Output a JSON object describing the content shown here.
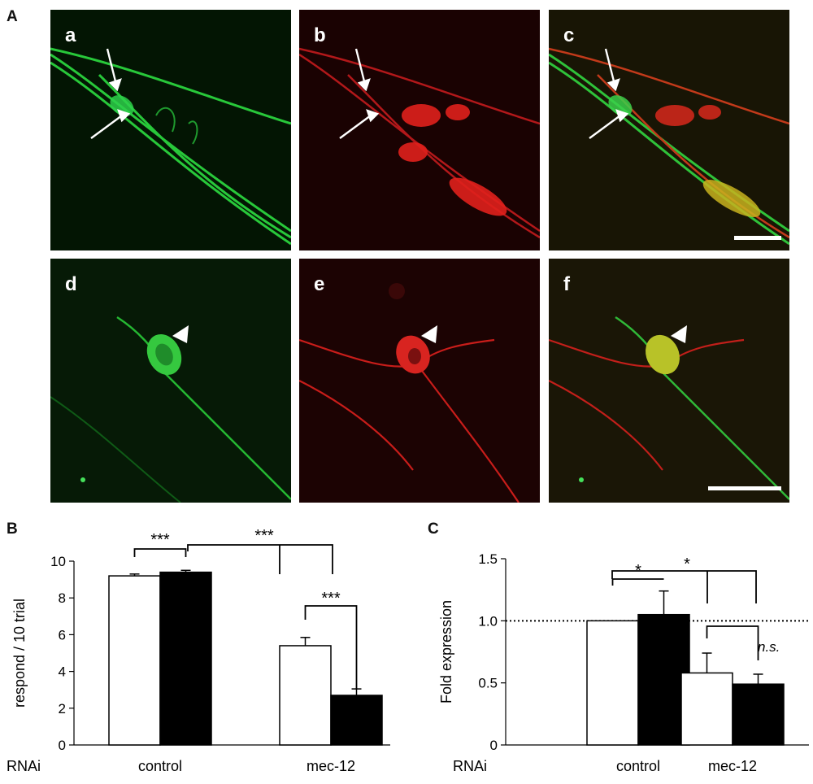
{
  "figure": {
    "panel_letters": {
      "A": "A",
      "B": "B",
      "C": "C"
    },
    "microscopy_labels": [
      "a",
      "b",
      "c",
      "d",
      "e",
      "f"
    ],
    "channel_colors": {
      "green": "#22c33a",
      "red": "#e0201c",
      "merge": "#c8b21e"
    }
  },
  "chart_data": [
    {
      "type": "bar",
      "panel": "B",
      "ylabel": "respond / 10 trial",
      "ylim": [
        0,
        10
      ],
      "yticks": [
        "0",
        "2",
        "4",
        "6",
        "8",
        "10"
      ],
      "x_prefix": "RNAi",
      "categories": [
        "control",
        "mec-12"
      ],
      "series": [
        {
          "fill": "#ffffff",
          "values": [
            9.2,
            5.4
          ],
          "errors": [
            0.1,
            0.45
          ]
        },
        {
          "fill": "#000000",
          "values": [
            9.4,
            2.7
          ],
          "errors": [
            0.1,
            0.35
          ]
        }
      ],
      "significance": [
        "***",
        "***",
        "***"
      ]
    },
    {
      "type": "bar",
      "panel": "C",
      "ylabel": "Fold expression",
      "ylim": [
        0,
        1.5
      ],
      "yticks": [
        "0",
        "0.5",
        "1.0",
        "1.5"
      ],
      "reference_line": 1.0,
      "x_prefix": "RNAi",
      "categories": [
        "control",
        "mec-12"
      ],
      "series": [
        {
          "fill": "#ffffff",
          "values": [
            1.0,
            0.58
          ],
          "errors": [
            0.0,
            0.16
          ]
        },
        {
          "fill": "#000000",
          "values": [
            1.05,
            0.49
          ],
          "errors": [
            0.19,
            0.08
          ]
        }
      ],
      "significance": [
        "*",
        "*",
        "n.s."
      ]
    }
  ]
}
